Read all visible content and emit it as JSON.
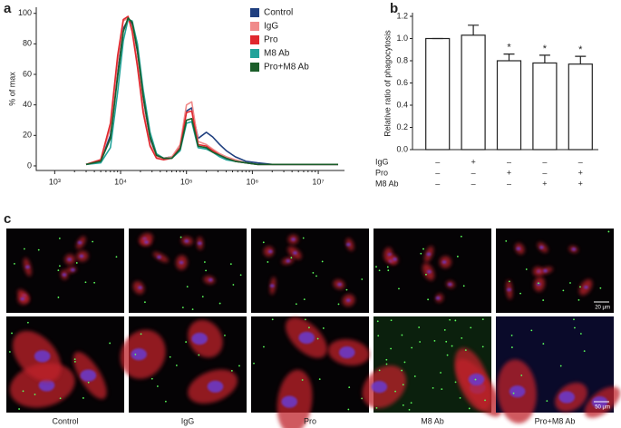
{
  "chart_data": [
    {
      "type": "line",
      "panel": "a",
      "ylabel": "% of max",
      "log_x": true,
      "x": [
        3000,
        5000,
        7000,
        9000,
        11000,
        13000,
        15000,
        18000,
        22000,
        28000,
        35000,
        45000,
        60000,
        80000,
        100000,
        120000,
        150000,
        200000,
        250000,
        320000,
        400000,
        550000,
        800000,
        1200000,
        2000000,
        5000000,
        20000000
      ],
      "xlim": [
        525,
        25000000
      ],
      "xticks": [
        {
          "value": 1000,
          "label": "10³"
        },
        {
          "value": 10000,
          "label": "10⁴"
        },
        {
          "value": 100000,
          "label": "10⁵"
        },
        {
          "value": 1000000,
          "label": "10⁶"
        },
        {
          "value": 10000000,
          "label": "10⁷"
        }
      ],
      "ylim": [
        -3,
        104
      ],
      "yticks": [
        0,
        20,
        40,
        60,
        80,
        100
      ],
      "legend": "top-right",
      "series": [
        {
          "name": "Control",
          "color": "#1f3f7f",
          "values": [
            1,
            3,
            20,
            60,
            90,
            96,
            93,
            75,
            45,
            18,
            7,
            5,
            6,
            12,
            36,
            38,
            18,
            22,
            19,
            14,
            10,
            6,
            3,
            2,
            1,
            1,
            1
          ]
        },
        {
          "name": "IgG",
          "color": "#f08a8a",
          "values": [
            1,
            4,
            25,
            68,
            95,
            97,
            90,
            68,
            38,
            14,
            6,
            5,
            6,
            14,
            40,
            42,
            16,
            14,
            11,
            8,
            6,
            4,
            2,
            1,
            1,
            1,
            1
          ]
        },
        {
          "name": "Pro",
          "color": "#e0282e",
          "values": [
            1,
            4,
            28,
            72,
            96,
            98,
            88,
            65,
            35,
            13,
            5,
            4,
            5,
            12,
            35,
            36,
            14,
            13,
            10,
            7,
            5,
            3,
            2,
            1,
            1,
            1,
            1
          ]
        },
        {
          "name": "M8 Ab",
          "color": "#22a39a",
          "values": [
            1,
            2,
            12,
            48,
            82,
            96,
            95,
            80,
            50,
            22,
            8,
            5,
            5,
            10,
            28,
            29,
            12,
            11,
            9,
            6,
            4,
            3,
            2,
            1,
            1,
            1,
            1
          ]
        },
        {
          "name": "Pro+M8 Ab",
          "color": "#1b5e2a",
          "values": [
            1,
            3,
            18,
            58,
            88,
            97,
            94,
            76,
            46,
            19,
            7,
            5,
            5,
            11,
            30,
            31,
            13,
            12,
            9,
            7,
            5,
            3,
            2,
            1,
            1,
            1,
            1
          ]
        }
      ]
    },
    {
      "type": "bar",
      "panel": "b",
      "ylabel": "Relative ratio of phagocytosis",
      "categories": [
        null,
        null,
        null,
        null,
        null
      ],
      "values": [
        1.0,
        1.03,
        0.8,
        0.78,
        0.77
      ],
      "errors": [
        0,
        0.09,
        0.06,
        0.07,
        0.07
      ],
      "significance": [
        null,
        null,
        "*",
        "*",
        "*"
      ],
      "color": "#ffffff",
      "ylim": [
        0,
        1.2
      ],
      "yticks": [
        {
          "value": 0,
          "label": "0.0"
        },
        0.2,
        0.4,
        0.6,
        0.8,
        {
          "value": 1,
          "label": "1.0"
        },
        1.2
      ],
      "conditions": [
        {
          "label": "IgG",
          "signs": [
            "–",
            "+",
            "–",
            "–",
            "–"
          ]
        },
        {
          "label": "Pro",
          "signs": [
            "–",
            "–",
            "+",
            "–",
            "+"
          ]
        },
        {
          "label": "M8 Ab",
          "signs": [
            "–",
            "–",
            "–",
            "+",
            "+"
          ]
        }
      ]
    }
  ],
  "figure_c": {
    "panel": "c",
    "columns": [
      "Control",
      "IgG",
      "Pro",
      "M8 Ab",
      "Pro+M8 Ab"
    ],
    "scale_bars": [
      "20 μm",
      "50 μm"
    ]
  }
}
